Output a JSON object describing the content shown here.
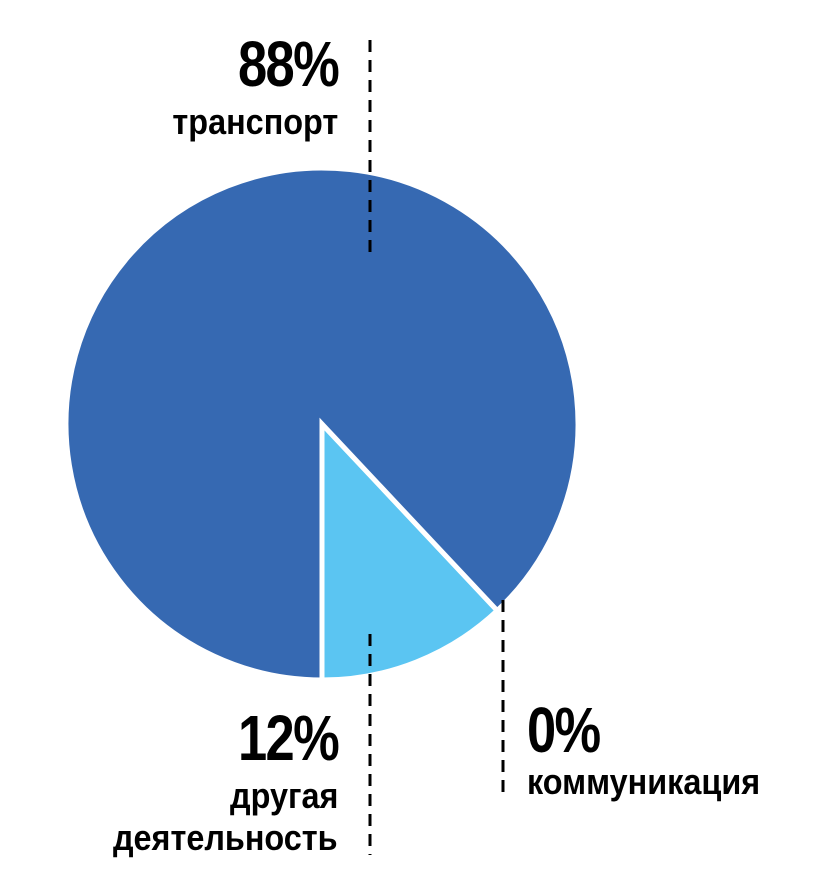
{
  "chart_data": {
    "type": "pie",
    "slices": [
      {
        "label_pct": "88%",
        "label": "транспорт",
        "value": 88,
        "color": "#3669b2"
      },
      {
        "label_pct": "12%",
        "label": "другая деятельность",
        "label_lines": [
          "другая",
          "деятельность"
        ],
        "value": 12,
        "color": "#5bc5f2"
      },
      {
        "label_pct": "0%",
        "label": "коммуникация",
        "value": 0,
        "color": "#5bc5f2"
      }
    ],
    "start_angle_deg": 180,
    "direction": "counterclockwise",
    "leader_lines": "dashed"
  }
}
